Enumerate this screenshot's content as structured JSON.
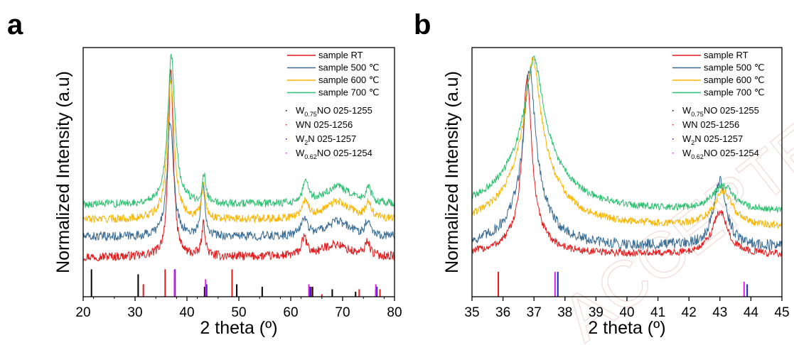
{
  "chart_data": [
    {
      "panel": "a",
      "type": "line",
      "xlabel": "2 theta (º)",
      "ylabel": "Normalized Intensity (a.u)",
      "xlim": [
        20,
        80
      ],
      "xticks": [
        20,
        30,
        40,
        50,
        60,
        70,
        80
      ],
      "grid": false,
      "legend_position": "top-right",
      "series": [
        {
          "name": "sample RT",
          "color": "#e31a1c",
          "offset": 0.16,
          "noise": 0.018,
          "peaks": [
            {
              "x": 36.9,
              "h": 0.76,
              "w": 0.55
            },
            {
              "x": 43.2,
              "h": 0.13,
              "w": 0.4
            },
            {
              "x": 62.6,
              "h": 0.07,
              "w": 0.6
            },
            {
              "x": 68.5,
              "h": 0.05,
              "w": 3.0
            },
            {
              "x": 74.8,
              "h": 0.06,
              "w": 0.5
            }
          ]
        },
        {
          "name": "sample 500 ℃",
          "color": "#3a6c94",
          "offset": 0.24,
          "noise": 0.018,
          "peaks": [
            {
              "x": 36.8,
              "h": 0.46,
              "w": 0.75
            },
            {
              "x": 43.1,
              "h": 0.22,
              "w": 0.45
            },
            {
              "x": 62.6,
              "h": 0.07,
              "w": 0.7
            },
            {
              "x": 69.0,
              "h": 0.06,
              "w": 3.0
            },
            {
              "x": 74.9,
              "h": 0.06,
              "w": 0.6
            }
          ]
        },
        {
          "name": "sample 600 ℃",
          "color": "#f7b500",
          "offset": 0.31,
          "noise": 0.016,
          "peaks": [
            {
              "x": 36.9,
              "h": 0.56,
              "w": 0.8
            },
            {
              "x": 43.2,
              "h": 0.13,
              "w": 0.45
            },
            {
              "x": 62.8,
              "h": 0.07,
              "w": 0.7
            },
            {
              "x": 69.0,
              "h": 0.07,
              "w": 3.0
            },
            {
              "x": 75.0,
              "h": 0.06,
              "w": 0.6
            }
          ]
        },
        {
          "name": "sample 700 ℃",
          "color": "#2fbf71",
          "offset": 0.37,
          "noise": 0.016,
          "peaks": [
            {
              "x": 37.0,
              "h": 0.6,
              "w": 0.85
            },
            {
              "x": 43.3,
              "h": 0.11,
              "w": 0.45
            },
            {
              "x": 62.9,
              "h": 0.08,
              "w": 0.7
            },
            {
              "x": 69.0,
              "h": 0.07,
              "w": 3.0
            },
            {
              "x": 75.0,
              "h": 0.06,
              "w": 0.6
            }
          ]
        }
      ],
      "reference_sticks": [
        {
          "name": "W0.75NO 025-1255",
          "color": "#000000",
          "positions": [
            21.6,
            30.6,
            37.6,
            43.4,
            49.6,
            54.5,
            64.2,
            68.0,
            72.5,
            76.4
          ],
          "heights": [
            0.11,
            0.09,
            0.07,
            0.04,
            0.05,
            0.04,
            0.04,
            0.03,
            0.02,
            0.03
          ]
        },
        {
          "name": "WN 025-1256",
          "color": "#e31a1c",
          "positions": [
            31.6,
            35.8,
            48.7,
            63.9,
            66.0,
            73.2,
            77.2
          ],
          "heights": [
            0.05,
            0.11,
            0.11,
            0.04,
            0.01,
            0.03,
            0.03
          ]
        },
        {
          "name": "W2N 025-1257",
          "color": "#1f1fd0",
          "positions": [
            37.7,
            43.8,
            63.7,
            76.6
          ],
          "heights": [
            0.11,
            0.05,
            0.04,
            0.04
          ]
        },
        {
          "name": "W0.62NO 025-1254",
          "color": "#e020e0",
          "positions": [
            37.6,
            43.6,
            63.5,
            76.4
          ],
          "heights": [
            0.11,
            0.07,
            0.05,
            0.05
          ]
        }
      ]
    },
    {
      "panel": "b",
      "type": "line",
      "xlabel": "2 theta (º)",
      "ylabel": "Normalized Intensity (a.u)",
      "xlim": [
        35,
        45
      ],
      "xticks": [
        35,
        36,
        37,
        38,
        39,
        40,
        41,
        42,
        43,
        44,
        45
      ],
      "grid": false,
      "legend_position": "top-right",
      "series": [
        {
          "name": "sample RT",
          "color": "#e31a1c",
          "offset": 0.17,
          "noise": 0.015,
          "peaks": [
            {
              "x": 36.78,
              "h": 0.61,
              "w": 0.17
            },
            {
              "x": 36.78,
              "h": 0.1,
              "w": 0.6
            },
            {
              "x": 43.0,
              "h": 0.17,
              "w": 0.3
            }
          ]
        },
        {
          "name": "sample 500 ℃",
          "color": "#3a6c94",
          "offset": 0.2,
          "noise": 0.022,
          "peaks": [
            {
              "x": 36.86,
              "h": 0.5,
              "w": 0.2
            },
            {
              "x": 36.86,
              "h": 0.22,
              "w": 0.65
            },
            {
              "x": 43.0,
              "h": 0.26,
              "w": 0.25
            }
          ]
        },
        {
          "name": "sample 600 ℃",
          "color": "#f7b500",
          "offset": 0.28,
          "noise": 0.015,
          "peaks": [
            {
              "x": 36.96,
              "h": 0.4,
              "w": 0.28
            },
            {
              "x": 36.96,
              "h": 0.27,
              "w": 0.9
            },
            {
              "x": 43.1,
              "h": 0.14,
              "w": 0.35
            }
          ]
        },
        {
          "name": "sample 700 ℃",
          "color": "#2fbf71",
          "offset": 0.34,
          "noise": 0.014,
          "peaks": [
            {
              "x": 37.0,
              "h": 0.34,
              "w": 0.3
            },
            {
              "x": 37.0,
              "h": 0.28,
              "w": 1.0
            },
            {
              "x": 43.1,
              "h": 0.1,
              "w": 0.4
            }
          ]
        }
      ],
      "reference_sticks": [
        {
          "name": "W0.75NO 025-1255",
          "color": "#000000",
          "positions": [],
          "heights": []
        },
        {
          "name": "WN 025-1256",
          "color": "#e31a1c",
          "positions": [
            35.85
          ],
          "heights": [
            0.1
          ]
        },
        {
          "name": "W2N 025-1257",
          "color": "#1f1fd0",
          "positions": [
            37.77,
            43.88
          ],
          "heights": [
            0.1,
            0.05
          ]
        },
        {
          "name": "W0.62NO 025-1254",
          "color": "#e020e0",
          "positions": [
            37.68,
            43.78
          ],
          "heights": [
            0.1,
            0.06
          ]
        }
      ]
    }
  ],
  "legend": {
    "samples": [
      "sample RT",
      "sample 500 ℃",
      "sample 600 ℃",
      "sample 700 ℃"
    ],
    "references": [
      {
        "base": "W",
        "sub": "0.75",
        "rest": "NO 025-1255",
        "color": "#000000"
      },
      {
        "base": "WN 025-1256",
        "sub": "",
        "rest": "",
        "color": "#e31a1c"
      },
      {
        "base": "W",
        "sub": "2",
        "rest": "N 025-1257",
        "color": "#1f1fd0"
      },
      {
        "base": "W",
        "sub": "0.62",
        "rest": "NO 025-1254",
        "color": "#e020e0"
      }
    ]
  },
  "panel_letters": [
    "a",
    "b"
  ],
  "watermark_text": "ACCEPTED"
}
